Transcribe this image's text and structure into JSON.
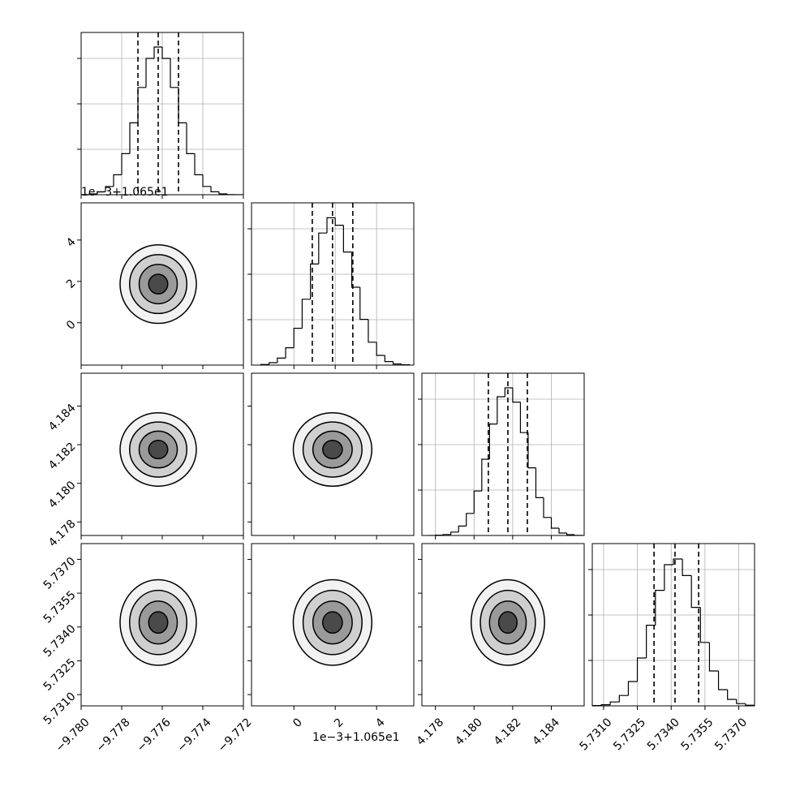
{
  "chart_data": {
    "type": "corner",
    "levels": [
      2,
      1.5,
      1,
      0.5
    ],
    "level_fills": [
      "#f2f2f2",
      "#cfcfcf",
      "#9a9a9a",
      "#4a4a4a"
    ],
    "hist_ylim": [
      0,
      1000
    ],
    "hist_yticks": [
      280,
      560,
      840
    ],
    "grid": true,
    "parameters": [
      {
        "lim": [
          -9.78,
          -9.772
        ],
        "ticks": [
          {
            "value": -9.78,
            "label": "−9.780"
          },
          {
            "value": -9.778,
            "label": "−9.778"
          },
          {
            "value": -9.776,
            "label": "−9.776"
          },
          {
            "value": -9.774,
            "label": "−9.774"
          },
          {
            "value": -9.772,
            "label": "−9.772"
          }
        ],
        "mean": -9.7762,
        "sd": 0.00094,
        "quantiles": [
          -9.7772,
          -9.7762,
          -9.7752
        ],
        "bins": [
          -9.78,
          -9.7796,
          -9.7792,
          -9.7788,
          -9.7784,
          -9.778,
          -9.7776,
          -9.7772,
          -9.7768,
          -9.7764,
          -9.776,
          -9.7756,
          -9.7752,
          -9.7748,
          -9.7744,
          -9.774,
          -9.7736,
          -9.7732,
          -9.7728,
          -9.7724,
          -9.772
        ],
        "counts": [
          1,
          5,
          18,
          51,
          123,
          253,
          443,
          661,
          840,
          910,
          840,
          661,
          443,
          253,
          123,
          51,
          18,
          5,
          1,
          0
        ]
      },
      {
        "lim": [
          -2.05,
          5.8
        ],
        "ticks": [
          0,
          2,
          4
        ],
        "offset_text": "1e−3+1.065e1",
        "mean": 1.87,
        "sd": 0.95,
        "quantiles": [
          0.89,
          1.87,
          2.85
        ],
        "bins": [
          -1.6,
          -1.2,
          -0.8,
          -0.4,
          0,
          0.4,
          0.8,
          1.2,
          1.6,
          2,
          2.4,
          2.8,
          3.2,
          3.6,
          4,
          4.4,
          4.8,
          5.2,
          5.6
        ],
        "counts": [
          4,
          15,
          43,
          107,
          227,
          406,
          623,
          814,
          908,
          862,
          697,
          480,
          282,
          141,
          60,
          22,
          7,
          2
        ]
      },
      {
        "lim": [
          4.1773,
          4.1857
        ],
        "ticks": [
          4.178,
          {
            "value": 4.18,
            "label": "4.180"
          },
          4.182,
          4.184
        ],
        "mean": 4.18175,
        "sd": 0.00095,
        "quantiles": [
          4.18074,
          4.18175,
          4.18276
        ],
        "bins": [
          4.1776,
          4.178,
          4.1784,
          4.1788,
          4.1792,
          4.1796,
          4.18,
          4.1804,
          4.1808,
          4.1812,
          4.1816,
          4.182,
          4.1824,
          4.1828,
          4.1832,
          4.1836,
          4.184,
          4.1844,
          4.1848,
          4.1852,
          4.1856
        ],
        "counts": [
          0,
          2,
          6,
          21,
          58,
          136,
          274,
          470,
          687,
          855,
          910,
          822,
          634,
          417,
          233,
          111,
          45,
          15,
          5,
          1
        ]
      },
      {
        "lim": [
          5.7305,
          5.7377
        ],
        "ticks": [
          {
            "value": 5.731,
            "label": "5.7310"
          },
          5.7325,
          {
            "value": 5.734,
            "label": "5.7340"
          },
          5.7355,
          {
            "value": 5.737,
            "label": "5.7370"
          }
        ],
        "mean": 5.7342,
        "sd": 0.00095,
        "quantiles": [
          5.73324,
          5.73417,
          5.73522
        ],
        "bins": [
          5.7305,
          5.7309,
          5.7313,
          5.7317,
          5.7321,
          5.7325,
          5.7329,
          5.7333,
          5.7337,
          5.7341,
          5.7345,
          5.7349,
          5.7353,
          5.7357,
          5.7361,
          5.7365,
          5.7369,
          5.7373,
          5.7377
        ],
        "counts": [
          2,
          7,
          24,
          64,
          150,
          295,
          497,
          712,
          870,
          905,
          803,
          607,
          391,
          215,
          100,
          40,
          14,
          4
        ]
      }
    ]
  }
}
